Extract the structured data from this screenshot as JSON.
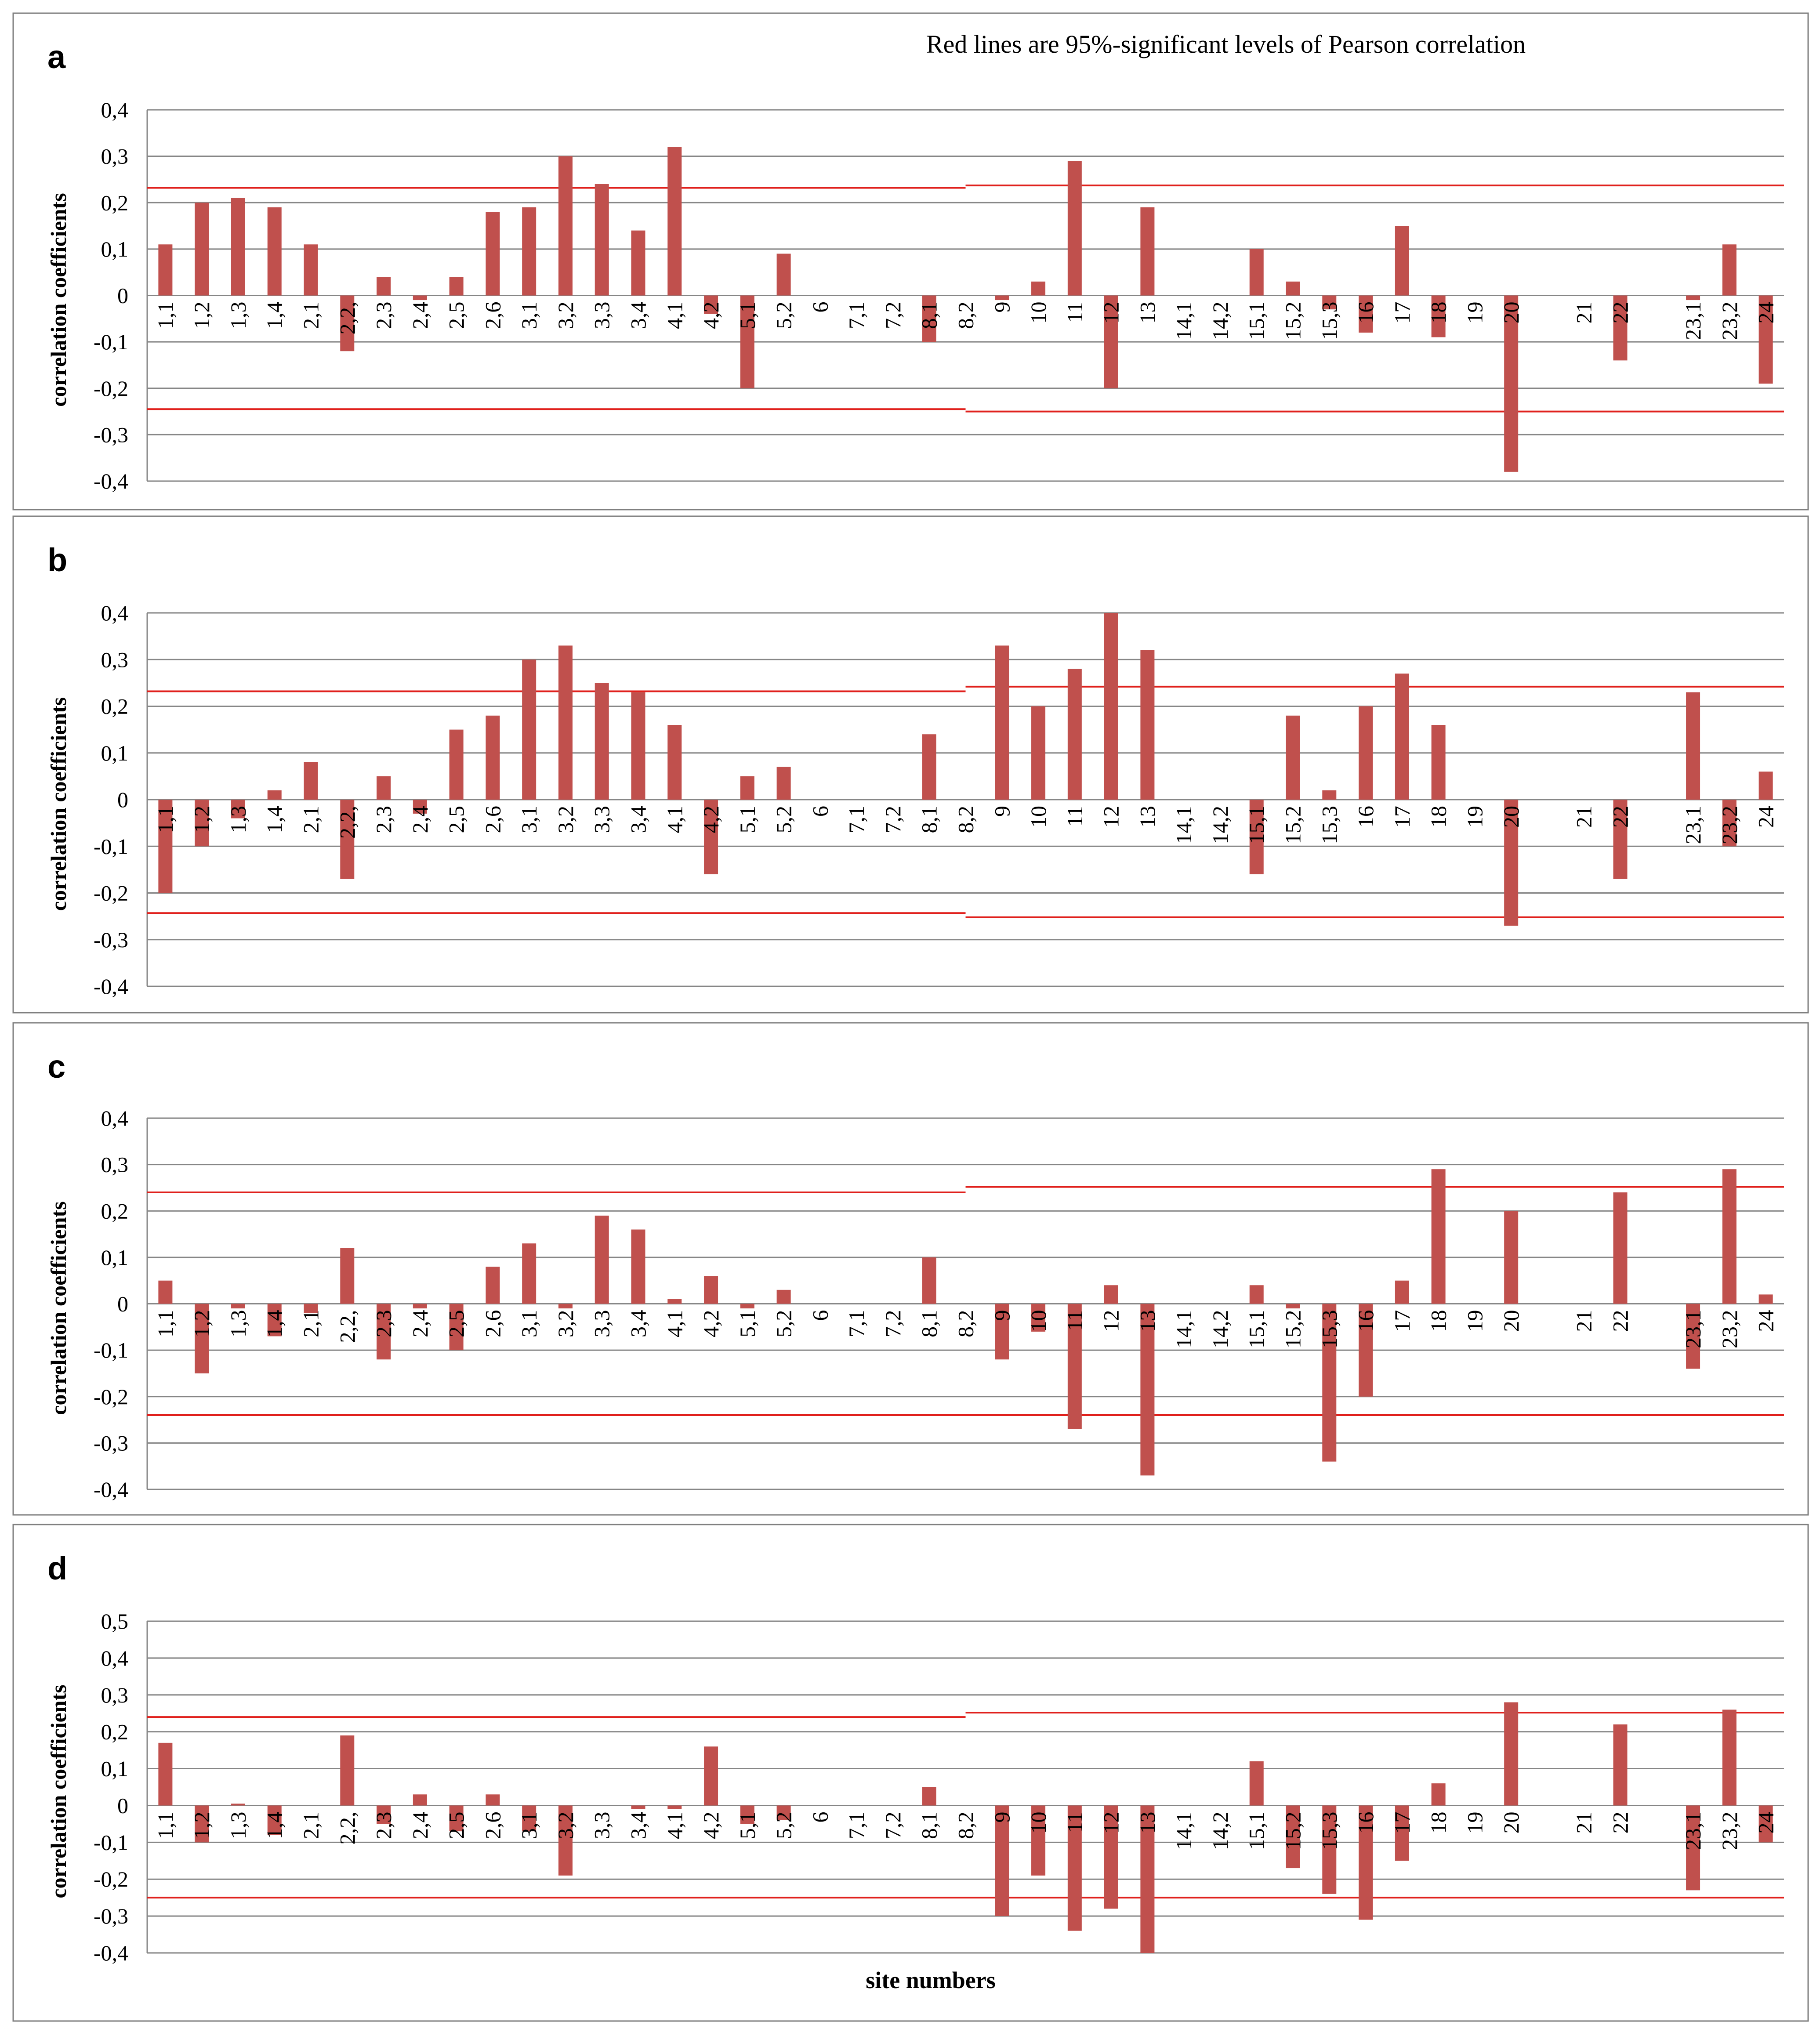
{
  "title": "Red lines are 95%-significant levels of Pearson correlation",
  "xlabel": "site numbers",
  "colors": {
    "bar": "#c0504d",
    "significance_line": "#e0201c",
    "grid": "#868686"
  },
  "categories": [
    "1,1",
    "1,2",
    "1,3",
    "1,4",
    "2,1",
    "2,2,",
    "2,3",
    "2,4",
    "2,5",
    "2,6",
    "3,1",
    "3,2",
    "3,3",
    "3,4",
    "4,1",
    "4,2",
    "5,1",
    "5,2",
    "6",
    "7,1",
    "7,2",
    "8,1",
    "8,2",
    "9",
    "10",
    "11",
    "12",
    "13",
    "14,1",
    "14,2",
    "15,1",
    "15,2",
    "15,3",
    "16",
    "17",
    "18",
    "19",
    "20",
    "",
    "21",
    "22",
    "",
    "23,1",
    "23,2",
    "24"
  ],
  "chart_data": [
    {
      "type": "bar",
      "panel": "a",
      "ylabel": "correlation  coefficients",
      "ylim": [
        -0.4,
        0.4
      ],
      "yticks": [
        "0,4",
        "0,3",
        "0,2",
        "0,1",
        "0",
        "-0,1",
        "-0,2",
        "-0,3",
        "-0,4"
      ],
      "yticks_values": [
        0.4,
        0.3,
        0.2,
        0.1,
        0,
        -0.1,
        -0.2,
        -0.3,
        -0.4
      ],
      "values": [
        0.11,
        0.2,
        0.21,
        0.19,
        0.11,
        -0.12,
        0.04,
        -0.01,
        0.04,
        0.18,
        0.19,
        0.3,
        0.24,
        0.14,
        0.32,
        -0.04,
        -0.2,
        0.09,
        0,
        0,
        0,
        -0.1,
        0,
        -0.01,
        0.03,
        0.29,
        -0.2,
        0.19,
        0,
        0,
        0.1,
        0.03,
        -0.03,
        -0.08,
        0.15,
        -0.09,
        0,
        -0.38,
        0,
        0,
        -0.14,
        0,
        -0.01,
        0.11,
        -0.19
      ],
      "significance": {
        "upper": [
          0.232,
          0.237
        ],
        "lower": [
          -0.245,
          -0.25
        ]
      }
    },
    {
      "type": "bar",
      "panel": "b",
      "ylabel": "correlation  coefficients",
      "ylim": [
        -0.4,
        0.4
      ],
      "yticks": [
        "0,4",
        "0,3",
        "0,2",
        "0,1",
        "0",
        "-0,1",
        "-0,2",
        "-0,3",
        "-0,4"
      ],
      "yticks_values": [
        0.4,
        0.3,
        0.2,
        0.1,
        0,
        -0.1,
        -0.2,
        -0.3,
        -0.4
      ],
      "values": [
        -0.2,
        -0.1,
        -0.04,
        0.02,
        0.08,
        -0.17,
        0.05,
        -0.03,
        0.15,
        0.18,
        0.3,
        0.33,
        0.25,
        0.23,
        0.16,
        -0.16,
        0.05,
        0.07,
        0,
        0,
        0,
        0.14,
        0,
        0.33,
        0.2,
        0.28,
        0.4,
        0.32,
        0,
        0,
        -0.16,
        0.18,
        0.02,
        0.2,
        0.27,
        0.16,
        0,
        -0.27,
        0,
        0,
        -0.17,
        0,
        0.23,
        -0.1,
        0.06
      ],
      "significance": {
        "upper": [
          0.232,
          0.242
        ],
        "lower": [
          -0.243,
          -0.252
        ]
      }
    },
    {
      "type": "bar",
      "panel": "c",
      "ylabel": "correlation  coefficients",
      "ylim": [
        -0.4,
        0.4
      ],
      "yticks": [
        "0,4",
        "0,3",
        "0,2",
        "0,1",
        "0",
        "-0,1",
        "-0,2",
        "-0,3",
        "-0,4"
      ],
      "yticks_values": [
        0.4,
        0.3,
        0.2,
        0.1,
        0,
        -0.1,
        -0.2,
        -0.3,
        -0.4
      ],
      "values": [
        0.05,
        -0.15,
        -0.01,
        -0.07,
        -0.02,
        0.12,
        -0.12,
        -0.01,
        -0.1,
        0.08,
        0.13,
        -0.01,
        0.19,
        0.16,
        0.01,
        0.06,
        -0.01,
        0.03,
        0,
        0,
        0,
        0.1,
        0,
        -0.12,
        -0.06,
        -0.27,
        0.04,
        -0.37,
        0,
        0,
        0.04,
        -0.01,
        -0.34,
        -0.2,
        0.05,
        0.29,
        0,
        0.2,
        0,
        0,
        0.24,
        0,
        -0.14,
        0.29,
        0.02
      ],
      "significance": {
        "upper": [
          0.24,
          0.252
        ],
        "lower": [
          -0.24,
          -0.24
        ]
      }
    },
    {
      "type": "bar",
      "panel": "d",
      "ylabel": "correlation  coefficients",
      "ylim": [
        -0.4,
        0.5
      ],
      "yticks": [
        "0,5",
        "0,4",
        "0,3",
        "0,2",
        "0,1",
        "0",
        "-0,1",
        "-0,2",
        "-0,3",
        "-0,4"
      ],
      "yticks_values": [
        0.5,
        0.4,
        0.3,
        0.2,
        0.1,
        0,
        -0.1,
        -0.2,
        -0.3,
        -0.4
      ],
      "values": [
        0.17,
        -0.1,
        0.005,
        -0.08,
        0,
        0.19,
        -0.05,
        0.03,
        -0.07,
        0.03,
        -0.07,
        -0.19,
        0,
        -0.01,
        -0.01,
        0.16,
        -0.05,
        -0.04,
        0,
        0,
        0,
        0.05,
        0,
        -0.3,
        -0.19,
        -0.34,
        -0.28,
        -0.4,
        0,
        0,
        0.12,
        -0.17,
        -0.24,
        -0.31,
        -0.15,
        0.06,
        0,
        0.28,
        0,
        0,
        0.22,
        0,
        -0.23,
        0.26,
        -0.1
      ],
      "significance": {
        "upper": [
          0.24,
          0.252
        ],
        "lower": [
          -0.25,
          -0.25
        ]
      }
    }
  ]
}
